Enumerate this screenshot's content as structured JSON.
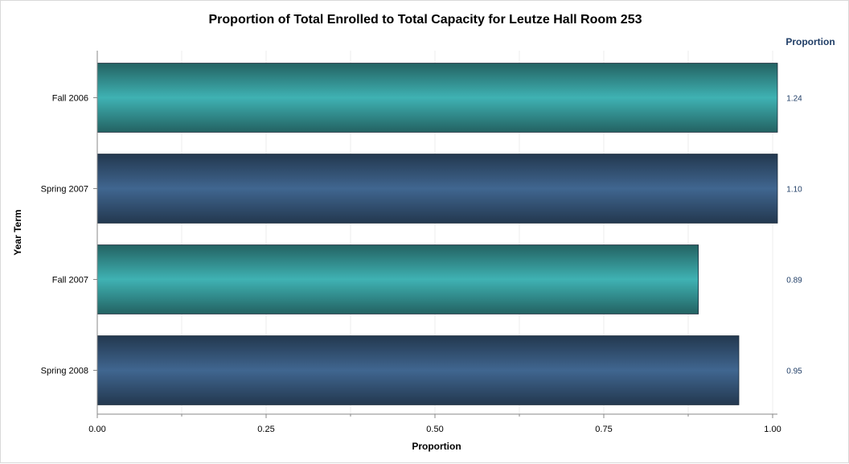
{
  "chart_data": {
    "type": "bar",
    "orientation": "horizontal",
    "title": "Proportion of Total Enrolled to Total Capacity for Leutze Hall Room 253",
    "xlabel": "Proportion",
    "ylabel": "Year Term",
    "categories": [
      "Fall 2006",
      "Spring 2007",
      "Fall 2007",
      "Spring 2008"
    ],
    "values": [
      1.24,
      1.1,
      0.89,
      0.95
    ],
    "value_labels": [
      "1.24",
      "1.10",
      "0.89",
      "0.95"
    ],
    "value_column_header": "Proportion",
    "xlim": [
      0,
      1
    ],
    "x_ticks": [
      "0.00",
      "0.25",
      "0.50",
      "0.75",
      "1.00"
    ],
    "grid": true,
    "bar_colors": [
      "#3fb2b3",
      "#406690",
      "#3fb2b3",
      "#406690"
    ],
    "label_color": "#1f3d66"
  }
}
